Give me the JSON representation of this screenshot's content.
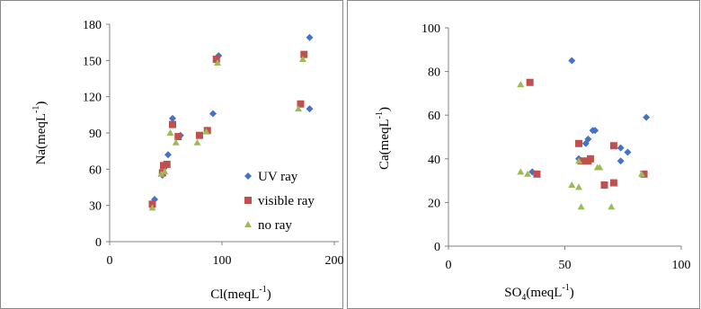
{
  "chart_data": [
    {
      "type": "scatter",
      "xlabel": "Cl(meqL",
      "xlabel_sup": "-1",
      "xlabel_end": ")",
      "ylabel": "Na(meqL",
      "ylabel_sup": "-1",
      "ylabel_end": ")",
      "xlim": [
        0,
        200
      ],
      "ylim": [
        0,
        180
      ],
      "xticks": [
        0,
        100,
        200
      ],
      "yticks": [
        0,
        30,
        60,
        90,
        120,
        150,
        180
      ],
      "xtick_labels": [
        "0",
        "100",
        "200"
      ],
      "ytick_labels": [
        "0",
        "30",
        "60",
        "90",
        "120",
        "150",
        "180"
      ],
      "grid": false,
      "legend": "bottom-right",
      "series": [
        {
          "name": "UV ray",
          "color": "#4472C4",
          "marker": "diamond",
          "points": [
            [
              40,
              35
            ],
            [
              47,
              55
            ],
            [
              49,
              63
            ],
            [
              52,
              72
            ],
            [
              56,
              102
            ],
            [
              63,
              88
            ],
            [
              87,
              92
            ],
            [
              92,
              106
            ],
            [
              97,
              154
            ],
            [
              178,
              169
            ],
            [
              178,
              110
            ]
          ]
        },
        {
          "name": "visible ray",
          "color": "#C0504D",
          "marker": "square",
          "points": [
            [
              38,
              31
            ],
            [
              47,
              57
            ],
            [
              48,
              63
            ],
            [
              51,
              64
            ],
            [
              56,
              97
            ],
            [
              61,
              87
            ],
            [
              80,
              88
            ],
            [
              87,
              92
            ],
            [
              95,
              151
            ],
            [
              173,
              155
            ],
            [
              170,
              114
            ]
          ]
        },
        {
          "name": "no ray",
          "color": "#9BBB59",
          "marker": "triangle",
          "points": [
            [
              38,
              28
            ],
            [
              46,
              56
            ],
            [
              49,
              58
            ],
            [
              54,
              90
            ],
            [
              59,
              82
            ],
            [
              78,
              82
            ],
            [
              86,
              91
            ],
            [
              96,
              148
            ],
            [
              172,
              151
            ],
            [
              168,
              110
            ]
          ]
        }
      ]
    },
    {
      "type": "scatter",
      "xlabel": "SO",
      "xlabel_sub": "4",
      "xlabel_end": "(meqL",
      "xlabel_sup": "-1",
      "xlabel_end2": ")",
      "ylabel": "Ca(meqL",
      "ylabel_sup": "-1",
      "ylabel_end": ")",
      "xlim": [
        0,
        100
      ],
      "ylim": [
        0,
        100
      ],
      "xticks": [
        0,
        50,
        100
      ],
      "yticks": [
        0,
        20,
        40,
        60,
        80,
        100
      ],
      "xtick_labels": [
        "0",
        "50",
        "100"
      ],
      "ytick_labels": [
        "0",
        "20",
        "40",
        "60",
        "80",
        "100"
      ],
      "grid": false,
      "series": [
        {
          "name": "UV ray",
          "color": "#4472C4",
          "marker": "diamond",
          "points": [
            [
              53,
              85
            ],
            [
              60,
              49
            ],
            [
              62,
              53
            ],
            [
              63,
              53
            ],
            [
              74,
              45
            ],
            [
              77,
              43
            ],
            [
              85,
              59
            ],
            [
              74,
              39
            ],
            [
              36,
              34
            ],
            [
              56,
              40
            ],
            [
              59,
              47
            ]
          ]
        },
        {
          "name": "visible ray",
          "color": "#C0504D",
          "marker": "square",
          "points": [
            [
              35,
              75
            ],
            [
              56,
              47
            ],
            [
              60,
              39
            ],
            [
              61,
              40
            ],
            [
              71,
              46
            ],
            [
              38,
              33
            ],
            [
              67,
              28
            ],
            [
              71,
              29
            ],
            [
              84,
              33
            ],
            [
              57,
              39
            ]
          ]
        },
        {
          "name": "no ray",
          "color": "#9BBB59",
          "marker": "triangle",
          "points": [
            [
              31,
              74
            ],
            [
              31,
              34
            ],
            [
              34,
              33
            ],
            [
              56,
              39
            ],
            [
              64,
              36
            ],
            [
              65,
              36
            ],
            [
              53,
              28
            ],
            [
              56,
              27
            ],
            [
              57,
              18
            ],
            [
              70,
              18
            ],
            [
              83,
              33
            ]
          ]
        }
      ]
    }
  ]
}
